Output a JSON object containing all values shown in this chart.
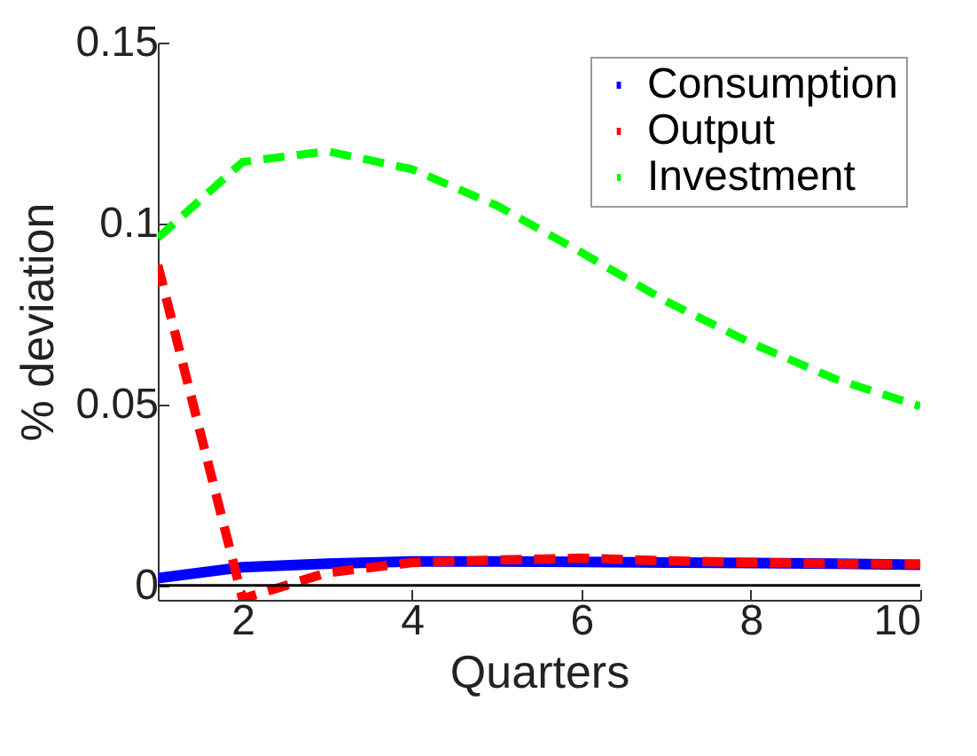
{
  "chart_data": {
    "type": "line",
    "xlabel": "Quarters",
    "ylabel": "% deviation",
    "x": [
      1,
      2,
      3,
      4,
      5,
      6,
      7,
      8,
      9,
      10
    ],
    "xlim": [
      1,
      10
    ],
    "xticks": [
      2,
      4,
      6,
      8,
      10
    ],
    "ylim": [
      -0.004,
      0.15
    ],
    "yticks": [
      0,
      0.05,
      0.1,
      0.15
    ],
    "legend": "top right",
    "grid": false,
    "ref_lines": [
      {
        "axis": "y",
        "value": 0,
        "color": "#000000"
      }
    ],
    "series": [
      {
        "name": "Consumption",
        "color": "#0000ff",
        "line_style": "solid",
        "values": [
          0.002,
          0.005,
          0.006,
          0.0066,
          0.0066,
          0.0065,
          0.0063,
          0.0062,
          0.006,
          0.0057
        ]
      },
      {
        "name": "Output",
        "color": "#ff0000",
        "line_style": "dashed",
        "values": [
          0.0885,
          -0.0037,
          0.0035,
          0.0063,
          0.007,
          0.0075,
          0.0068,
          0.0063,
          0.006,
          0.0058
        ]
      },
      {
        "name": "Investment",
        "color": "#00ff00",
        "line_style": "dashed",
        "values": [
          0.096,
          0.117,
          0.12,
          0.115,
          0.105,
          0.092,
          0.0785,
          0.067,
          0.057,
          0.0495
        ]
      }
    ]
  }
}
